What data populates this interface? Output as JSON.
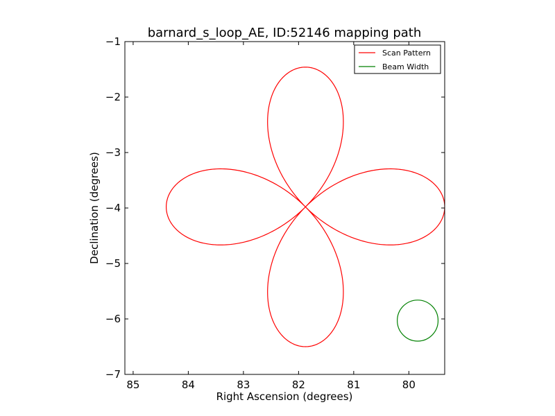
{
  "chart_data": {
    "type": "line",
    "title": "barnard_s_loop_AE, ID:52146 mapping path",
    "xlabel": "Right Ascension (degrees)",
    "ylabel": "Declination (degrees)",
    "xlim": [
      85.15,
      79.35
    ],
    "ylim": [
      -7,
      -1
    ],
    "x_inverted": true,
    "xticks": [
      85,
      84,
      83,
      82,
      81,
      80
    ],
    "xtick_labels": [
      "85",
      "84",
      "83",
      "82",
      "81",
      "80"
    ],
    "yticks": [
      -1,
      -2,
      -3,
      -4,
      -5,
      -6,
      -7
    ],
    "ytick_labels": [
      "−1",
      "−2",
      "−3",
      "−4",
      "−5",
      "−6",
      "−7"
    ],
    "grid": false,
    "legend": {
      "position": "top-right",
      "entries": [
        "Scan Pattern",
        "Beam Width"
      ]
    },
    "series": [
      {
        "name": "Scan Pattern",
        "color": "#ff0000",
        "shape": "four-petal rose",
        "center": [
          81.875,
          -3.98
        ],
        "amplitude_ra": 2.525,
        "amplitude_dec": 2.52,
        "turns": 1
      },
      {
        "name": "Beam Width",
        "color": "#008000",
        "shape": "circle",
        "center": [
          79.84,
          -6.03
        ],
        "radius_deg": 0.37
      }
    ]
  }
}
